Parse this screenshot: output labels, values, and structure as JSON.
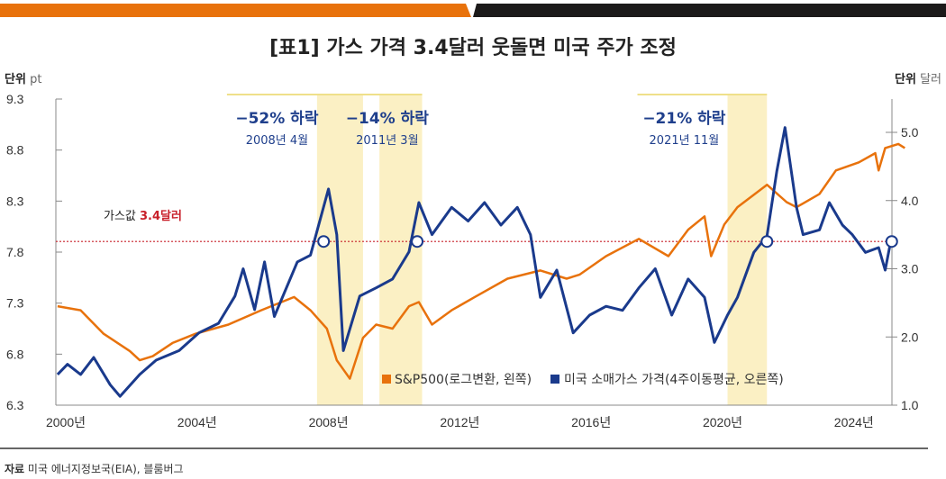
{
  "title": "[표1] 가스 가격 3.4달러 웃돌면 미국 주가 조정",
  "colors": {
    "orange": "#e8720c",
    "navy": "#1a3a8c",
    "band": "#fbf0c4",
    "threshold": "#c8202a",
    "top_bar_left": "#e8720c",
    "top_bar_right": "#1c1a1a"
  },
  "chart_data": {
    "type": "line",
    "left_axis": {
      "unit_label": "단위",
      "unit": "pt",
      "ticks": [
        "9.3",
        "8.8",
        "8.3",
        "7.8",
        "7.3",
        "6.8",
        "6.3"
      ],
      "range": [
        6.3,
        9.3
      ]
    },
    "right_axis": {
      "unit_label": "단위",
      "unit": "달러",
      "ticks": [
        "5.0",
        "4.0",
        "3.0",
        "2.0",
        "1.0"
      ],
      "range": [
        1.0,
        5.0
      ]
    },
    "x_axis": {
      "ticks": [
        "2000년",
        "2004년",
        "2008년",
        "2012년",
        "2016년",
        "2020년",
        "2024년"
      ],
      "tick_years": [
        2000,
        2004,
        2008,
        2012,
        2016,
        2020,
        2024
      ],
      "range": [
        2000,
        2026.3
      ]
    },
    "grid": false,
    "legend_position": "bottom-right",
    "threshold": {
      "label_prefix": "가스값 ",
      "label_value": "3.4달러",
      "value": 3.4,
      "axis": "right"
    },
    "bands": [
      {
        "from": 2008.2,
        "to": 2009.6,
        "pct": "−52% 하락",
        "date": "2008년 4월",
        "cross": 2008.4
      },
      {
        "from": 2010.1,
        "to": 2011.4,
        "pct": "−14% 하락",
        "date": "2011년 3월",
        "cross": 2011.25
      },
      {
        "from": 2020.7,
        "to": 2021.9,
        "pct": "−21% 하락",
        "date": "2021년 11월",
        "cross": 2021.9
      }
    ],
    "last_cross": 2025.7,
    "series": [
      {
        "name": "S&P500(로그변환, 왼쪽)",
        "axis": "left",
        "color": "#e8720c",
        "x": [
          2000.3,
          2001,
          2001.7,
          2002.5,
          2002.8,
          2003.2,
          2003.8,
          2004.5,
          2005.5,
          2006.5,
          2007.5,
          2008.0,
          2008.5,
          2008.8,
          2009.2,
          2009.6,
          2010.0,
          2010.5,
          2011.0,
          2011.3,
          2011.7,
          2012.3,
          2013,
          2014,
          2015,
          2015.8,
          2016.2,
          2017,
          2018,
          2018.9,
          2019.5,
          2020.0,
          2020.2,
          2020.6,
          2021.0,
          2021.9,
          2022.5,
          2022.8,
          2023.5,
          2024,
          2024.7,
          2025.2,
          2025.3,
          2025.5,
          2025.9,
          2026.1
        ],
        "y": [
          7.27,
          7.23,
          7.0,
          6.83,
          6.74,
          6.78,
          6.91,
          7.0,
          7.09,
          7.23,
          7.36,
          7.23,
          7.05,
          6.74,
          6.56,
          6.96,
          7.09,
          7.05,
          7.27,
          7.31,
          7.09,
          7.23,
          7.36,
          7.54,
          7.62,
          7.54,
          7.58,
          7.76,
          7.93,
          7.76,
          8.02,
          8.15,
          7.76,
          8.07,
          8.24,
          8.46,
          8.29,
          8.24,
          8.37,
          8.6,
          8.68,
          8.77,
          8.6,
          8.82,
          8.86,
          8.82
        ]
      },
      {
        "name": "미국 소매가스 가격(4주이동평균, 오른쪽)",
        "axis": "right",
        "color": "#1a3a8c",
        "x": [
          2000.3,
          2000.6,
          2001.0,
          2001.4,
          2001.9,
          2002.2,
          2002.8,
          2003.3,
          2004.0,
          2004.6,
          2005.2,
          2005.7,
          2005.95,
          2006.3,
          2006.6,
          2006.9,
          2007.6,
          2008.0,
          2008.55,
          2008.8,
          2009.0,
          2009.5,
          2010.0,
          2010.5,
          2011.0,
          2011.3,
          2011.7,
          2012.3,
          2012.8,
          2013.3,
          2013.8,
          2014.3,
          2014.7,
          2015.0,
          2015.5,
          2016.0,
          2016.5,
          2017,
          2017.5,
          2018,
          2018.5,
          2019,
          2019.5,
          2020.0,
          2020.3,
          2020.7,
          2021.0,
          2021.5,
          2021.9,
          2022.2,
          2022.45,
          2022.8,
          2023.0,
          2023.5,
          2023.8,
          2024.2,
          2024.5,
          2024.9,
          2025.3,
          2025.5,
          2025.7
        ],
        "y": [
          1.45,
          1.6,
          1.45,
          1.7,
          1.3,
          1.13,
          1.45,
          1.66,
          1.8,
          2.06,
          2.2,
          2.6,
          3.0,
          2.4,
          3.1,
          2.3,
          3.1,
          3.2,
          4.17,
          3.5,
          1.8,
          2.6,
          2.72,
          2.85,
          3.25,
          3.97,
          3.5,
          3.9,
          3.7,
          3.97,
          3.64,
          3.9,
          3.5,
          2.58,
          2.98,
          2.06,
          2.32,
          2.45,
          2.39,
          2.72,
          3.0,
          2.32,
          2.85,
          2.58,
          1.92,
          2.32,
          2.58,
          3.24,
          3.48,
          4.43,
          5.07,
          3.9,
          3.5,
          3.57,
          3.97,
          3.64,
          3.5,
          3.24,
          3.31,
          2.98,
          3.48
        ]
      }
    ]
  },
  "source": {
    "label": "자료",
    "text": "미국 에너지정보국(EIA), 블룸버그"
  }
}
